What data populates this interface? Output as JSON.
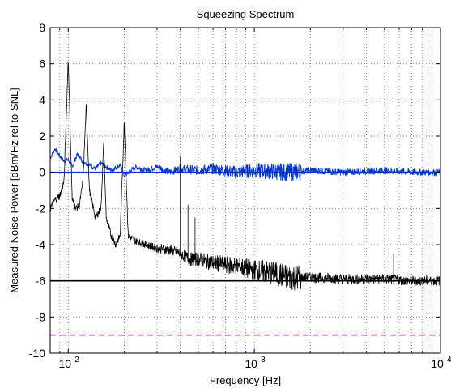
{
  "chart_data": {
    "type": "line",
    "title": "Squeezing Spectrum",
    "xlabel": "Frequency [Hz]",
    "ylabel": "Measured Noise Power [dBm/Hz rel to SNL]",
    "xscale": "log",
    "xlim": [
      80,
      10000
    ],
    "ylim": [
      -10,
      8
    ],
    "grid": true,
    "x_ticks": [
      {
        "value": 100,
        "base": "10",
        "exp": "2"
      },
      {
        "value": 1000,
        "base": "10",
        "exp": "3"
      },
      {
        "value": 10000,
        "base": "10",
        "exp": "4"
      }
    ],
    "y_ticks": [
      8,
      6,
      4,
      2,
      0,
      -2,
      -4,
      -6,
      -8,
      -10
    ],
    "series": [
      {
        "color": "#0033cc",
        "style": "noisy-line",
        "points": [
          [
            80,
            0.8
          ],
          [
            85,
            1.3
          ],
          [
            90,
            0.9
          ],
          [
            95,
            0.6
          ],
          [
            100,
            0.7
          ],
          [
            105,
            0.3
          ],
          [
            112,
            1.0
          ],
          [
            120,
            0.6
          ],
          [
            130,
            0.4
          ],
          [
            140,
            0.2
          ],
          [
            150,
            0.5
          ],
          [
            170,
            0.1
          ],
          [
            190,
            0.4
          ],
          [
            200,
            -0.2
          ],
          [
            230,
            0.3
          ],
          [
            260,
            0.1
          ],
          [
            300,
            0.3
          ],
          [
            350,
            0.0
          ],
          [
            400,
            0.2
          ],
          [
            500,
            0.1
          ],
          [
            600,
            0.2
          ],
          [
            800,
            0.0
          ],
          [
            1000,
            0.1
          ],
          [
            1500,
            0.0
          ],
          [
            2000,
            0.1
          ],
          [
            3000,
            0.0
          ],
          [
            5000,
            0.1
          ],
          [
            7000,
            0.0
          ],
          [
            10000,
            0.0
          ]
        ],
        "noise_amplitude": 0.35,
        "spikes": []
      },
      {
        "color": "#000000",
        "style": "noisy-line",
        "points": [
          [
            80,
            -2.0
          ],
          [
            85,
            -1.5
          ],
          [
            90,
            -1.3
          ],
          [
            95,
            -0.5
          ],
          [
            100,
            6.3
          ],
          [
            105,
            -1.5
          ],
          [
            110,
            -2.0
          ],
          [
            115,
            -1.8
          ],
          [
            120,
            -0.5
          ],
          [
            125,
            3.7
          ],
          [
            130,
            -1.0
          ],
          [
            140,
            -2.5
          ],
          [
            150,
            -2.0
          ],
          [
            155,
            1.6
          ],
          [
            160,
            -2.5
          ],
          [
            170,
            -3.5
          ],
          [
            180,
            -4.0
          ],
          [
            190,
            -3.5
          ],
          [
            200,
            2.8
          ],
          [
            210,
            -3.5
          ],
          [
            230,
            -3.8
          ],
          [
            260,
            -4.0
          ],
          [
            300,
            -4.2
          ],
          [
            350,
            -4.3
          ],
          [
            400,
            -4.5
          ],
          [
            450,
            -4.8
          ],
          [
            500,
            -4.8
          ],
          [
            600,
            -5.0
          ],
          [
            800,
            -5.2
          ],
          [
            1000,
            -5.4
          ],
          [
            1300,
            -5.6
          ],
          [
            1500,
            -5.8
          ],
          [
            2000,
            -5.8
          ],
          [
            3000,
            -5.9
          ],
          [
            5000,
            -5.9
          ],
          [
            7000,
            -6.0
          ],
          [
            10000,
            -6.0
          ]
        ],
        "noise_amplitude": 0.5,
        "spikes": [
          [
            400,
            0.9
          ],
          [
            440,
            -1.8
          ],
          [
            480,
            -2.5
          ],
          [
            5600,
            -4.5
          ]
        ]
      },
      {
        "color": "#0033cc",
        "style": "solid",
        "points": [
          [
            80,
            0
          ],
          [
            10000,
            0
          ]
        ]
      },
      {
        "color": "#000000",
        "style": "solid",
        "points": [
          [
            80,
            -6
          ],
          [
            10000,
            -6
          ]
        ]
      },
      {
        "color": "#ff33ff",
        "style": "dashed",
        "points": [
          [
            80,
            -9
          ],
          [
            10000,
            -9
          ]
        ]
      }
    ]
  }
}
